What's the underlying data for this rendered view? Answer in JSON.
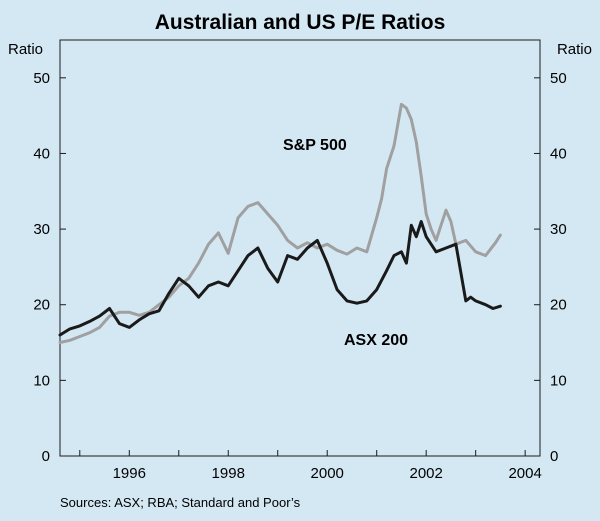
{
  "chart_data": {
    "type": "line",
    "title": "Australian and US P/E Ratios",
    "ylabel_left": "Ratio",
    "ylabel_right": "Ratio",
    "ylim": [
      0,
      55
    ],
    "yticks": [
      "0",
      "10",
      "20",
      "30",
      "40",
      "50"
    ],
    "xlim": [
      1994.6,
      2004.3
    ],
    "xticks": [
      "1996",
      "1998",
      "2000",
      "2002",
      "2004"
    ],
    "xtick_values": [
      1996,
      1998,
      2000,
      2002,
      2004
    ],
    "source": "Sources: ASX; RBA; Standard and Poor’s",
    "series": [
      {
        "name": "S&P 500",
        "label": "S&P 500",
        "color": "#a0a0a0",
        "x": [
          1994.6,
          1994.8,
          1995.0,
          1995.2,
          1995.4,
          1995.6,
          1995.8,
          1996.0,
          1996.2,
          1996.4,
          1996.6,
          1996.8,
          1997.0,
          1997.2,
          1997.4,
          1997.6,
          1997.8,
          1998.0,
          1998.2,
          1998.4,
          1998.6,
          1998.8,
          1999.0,
          1999.2,
          1999.4,
          1999.6,
          1999.8,
          2000.0,
          2000.2,
          2000.4,
          2000.6,
          2000.8,
          2001.0,
          2001.1,
          2001.2,
          2001.35,
          2001.5,
          2001.6,
          2001.7,
          2001.8,
          2001.9,
          2002.0,
          2002.1,
          2002.2,
          2002.3,
          2002.4,
          2002.5,
          2002.6,
          2002.8,
          2003.0,
          2003.2,
          2003.4,
          2003.5
        ],
        "values": [
          15,
          15.3,
          15.8,
          16.3,
          17,
          18.5,
          19,
          19,
          18.6,
          19,
          20,
          21,
          22.5,
          23.5,
          25.5,
          28,
          29.5,
          26.8,
          31.5,
          33,
          33.5,
          32,
          30.5,
          28.5,
          27.5,
          28.2,
          27.5,
          28,
          27.2,
          26.7,
          27.5,
          27,
          31.5,
          34,
          38,
          41,
          46.5,
          46,
          44.5,
          41.5,
          37,
          32,
          30,
          28.5,
          30.5,
          32.5,
          31,
          28,
          28.5,
          27,
          26.5,
          28.2,
          29.2
        ]
      },
      {
        "name": "ASX 200",
        "label": "ASX 200",
        "color": "#1a1a1a",
        "x": [
          1994.6,
          1994.8,
          1995.0,
          1995.2,
          1995.4,
          1995.6,
          1995.8,
          1996.0,
          1996.2,
          1996.4,
          1996.6,
          1996.8,
          1997.0,
          1997.2,
          1997.4,
          1997.6,
          1997.8,
          1998.0,
          1998.2,
          1998.4,
          1998.6,
          1998.8,
          1999.0,
          1999.2,
          1999.4,
          1999.6,
          1999.8,
          2000.0,
          2000.2,
          2000.4,
          2000.6,
          2000.8,
          2001.0,
          2001.2,
          2001.35,
          2001.5,
          2001.6,
          2001.7,
          2001.8,
          2001.9,
          2002.0,
          2002.2,
          2002.4,
          2002.6,
          2002.8,
          2002.9,
          2003.0,
          2003.2,
          2003.35,
          2003.5
        ],
        "values": [
          16,
          16.8,
          17.2,
          17.8,
          18.5,
          19.5,
          17.5,
          17,
          18,
          18.8,
          19.2,
          21.5,
          23.5,
          22.5,
          21,
          22.5,
          23,
          22.5,
          24.5,
          26.5,
          27.5,
          24.8,
          23,
          26.5,
          26,
          27.5,
          28.5,
          25.5,
          22,
          20.5,
          20.2,
          20.5,
          22,
          24.5,
          26.5,
          27,
          25.5,
          30.5,
          29,
          31,
          29,
          27,
          27.5,
          28,
          20.5,
          21,
          20.5,
          20,
          19.5,
          19.8
        ]
      }
    ]
  }
}
